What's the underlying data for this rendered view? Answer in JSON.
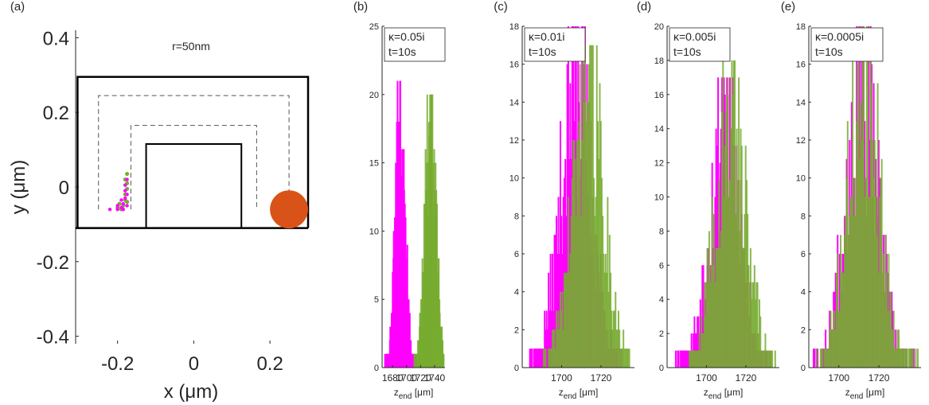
{
  "colors": {
    "magenta": "#ff00ff",
    "green": "#77ac30",
    "orange": "#d95319",
    "axis": "#262626"
  },
  "chart_data": [
    {
      "panel": "(a)",
      "type": "scatter",
      "title": "r=50nm",
      "xlabel": "x (μm)",
      "ylabel": "y (μm)",
      "xlim": [
        -0.31,
        0.3
      ],
      "ylim": [
        -0.42,
        0.42
      ],
      "xticks": [
        -0.2,
        0,
        0.2
      ],
      "xticklabels": [
        "-0.2",
        "0",
        "0.2"
      ],
      "yticks": [
        0.4,
        0.2,
        0,
        -0.2,
        -0.4
      ],
      "yticklabels": [
        "0.4",
        "0.2",
        "0",
        "-0.2",
        "-0.4"
      ],
      "walls": {
        "floor_y": -0.11,
        "outer": [
          [
            -0.305,
            -0.11
          ],
          [
            -0.305,
            0.295
          ],
          [
            0.3,
            0.295
          ],
          [
            0.3,
            -0.11
          ]
        ],
        "inner": [
          [
            -0.125,
            -0.11
          ],
          [
            -0.125,
            0.115
          ],
          [
            0.125,
            0.115
          ],
          [
            0.125,
            -0.11
          ]
        ]
      },
      "paths": {
        "outer_dashed": [
          [
            -0.25,
            -0.06
          ],
          [
            -0.25,
            0.245
          ],
          [
            0.25,
            0.245
          ],
          [
            0.25,
            -0.06
          ]
        ],
        "inner_dashed": [
          [
            -0.165,
            -0.06
          ],
          [
            -0.165,
            0.165
          ],
          [
            0.165,
            0.165
          ],
          [
            0.165,
            -0.06
          ]
        ]
      },
      "particle": {
        "x": 0.25,
        "y": -0.06,
        "r": 0.05
      },
      "magenta_points": [
        [
          -0.22,
          -0.06
        ],
        [
          -0.2,
          -0.06
        ],
        [
          -0.19,
          -0.055
        ],
        [
          -0.18,
          -0.03
        ],
        [
          -0.175,
          -0.05
        ],
        [
          -0.18,
          -0.01
        ],
        [
          -0.185,
          -0.045
        ],
        [
          -0.175,
          -0.02
        ],
        [
          -0.18,
          0.005
        ],
        [
          -0.19,
          -0.035
        ],
        [
          -0.185,
          -0.06
        ],
        [
          -0.2,
          -0.05
        ],
        [
          -0.175,
          0.02
        ]
      ],
      "green_points": [
        [
          -0.2,
          -0.055
        ],
        [
          -0.19,
          -0.06
        ],
        [
          -0.175,
          -0.04
        ],
        [
          -0.18,
          -0.02
        ],
        [
          -0.175,
          0.01
        ],
        [
          -0.175,
          0.035
        ],
        [
          -0.185,
          -0.05
        ],
        [
          -0.18,
          -0.035
        ],
        [
          -0.195,
          -0.045
        ],
        [
          -0.175,
          -0.005
        ],
        [
          -0.18,
          0.02
        ]
      ]
    },
    {
      "panel": "(b)",
      "type": "histogram",
      "legend": [
        "κ=0.05i",
        "t=10s"
      ],
      "xlabel": "z_end [μm]",
      "xlim": [
        1665,
        1755
      ],
      "ylim": [
        0,
        25
      ],
      "xticks": [
        1680,
        1700,
        1720,
        1740
      ],
      "yticks": [
        0,
        5,
        10,
        15,
        20,
        25
      ],
      "series": [
        {
          "name": "magenta",
          "color": "#ff00ff",
          "mean": 1690,
          "sd": 7,
          "peak": 21,
          "range": [
            1668,
            1712
          ],
          "seed": 11
        },
        {
          "name": "green",
          "color": "#77ac30",
          "mean": 1733,
          "sd": 8,
          "peak": 20,
          "range": [
            1710,
            1752
          ],
          "seed": 23
        }
      ]
    },
    {
      "panel": "(c)",
      "type": "histogram",
      "legend": [
        "κ=0.01i",
        "t=10s"
      ],
      "xlabel": "z_end [μm]",
      "xlim": [
        1680,
        1737
      ],
      "ylim": [
        0,
        18
      ],
      "xticks": [
        1700,
        1720
      ],
      "yticks": [
        0,
        2,
        4,
        6,
        8,
        10,
        12,
        14,
        16,
        18
      ],
      "series": [
        {
          "name": "magenta",
          "color": "#ff00ff",
          "mean": 1707,
          "sd": 8,
          "peak": 18,
          "range": [
            1683,
            1730
          ],
          "seed": 37
        },
        {
          "name": "green",
          "color": "#77ac30",
          "mean": 1713,
          "sd": 8,
          "peak": 17,
          "range": [
            1690,
            1735
          ],
          "seed": 41
        }
      ]
    },
    {
      "panel": "(d)",
      "type": "histogram",
      "legend": [
        "κ=0.005i",
        "t=10s"
      ],
      "xlabel": "z_end [μm]",
      "xlim": [
        1680,
        1737
      ],
      "ylim": [
        0,
        20
      ],
      "xticks": [
        1700,
        1720
      ],
      "yticks": [
        0,
        2,
        4,
        6,
        8,
        10,
        12,
        14,
        16,
        18,
        20
      ],
      "series": [
        {
          "name": "magenta",
          "color": "#ff00ff",
          "mean": 1709,
          "sd": 8,
          "peak": 17,
          "range": [
            1684,
            1732
          ],
          "seed": 53
        },
        {
          "name": "green",
          "color": "#77ac30",
          "mean": 1712,
          "sd": 8,
          "peak": 18,
          "range": [
            1690,
            1735
          ],
          "seed": 59
        }
      ]
    },
    {
      "panel": "(e)",
      "type": "histogram",
      "legend": [
        "κ=0.0005i",
        "t=10s"
      ],
      "xlabel": "z_end [μm]",
      "xlim": [
        1685,
        1741
      ],
      "ylim": [
        0,
        18
      ],
      "xticks": [
        1700,
        1720
      ],
      "yticks": [
        0,
        2,
        4,
        6,
        8,
        10,
        12,
        14,
        16,
        18
      ],
      "series": [
        {
          "name": "magenta",
          "color": "#ff00ff",
          "mean": 1711,
          "sd": 8,
          "peak": 18,
          "range": [
            1687,
            1737
          ],
          "seed": 67
        },
        {
          "name": "green",
          "color": "#77ac30",
          "mean": 1712,
          "sd": 8,
          "peak": 18,
          "range": [
            1688,
            1739
          ],
          "seed": 71
        }
      ]
    }
  ]
}
